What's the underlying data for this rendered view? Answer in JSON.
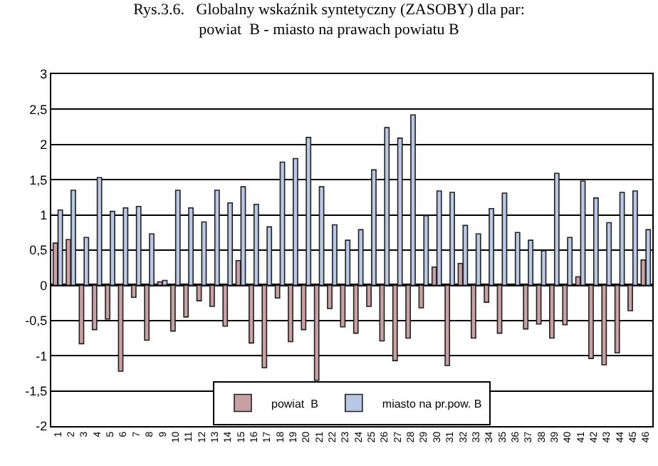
{
  "chart_data": {
    "type": "bar",
    "title": "Rys.3.6.   Globalny wskaźnik syntetyczny (ZASOBY) dla par:\npowiat  B - miasto na prawach powiatu B",
    "categories": [
      "1",
      "2",
      "3",
      "4",
      "5",
      "6",
      "7",
      "8",
      "9",
      "10",
      "11",
      "12",
      "13",
      "14",
      "15",
      "16",
      "17",
      "18",
      "19",
      "20",
      "21",
      "22",
      "23",
      "24",
      "25",
      "26",
      "27",
      "28",
      "29",
      "30",
      "31",
      "32",
      "33",
      "34",
      "35",
      "36",
      "37",
      "38",
      "39",
      "40",
      "41",
      "42",
      "43",
      "44",
      "45",
      "46"
    ],
    "series": [
      {
        "name": "powiat  B",
        "color": "#c8a0a4",
        "values": [
          0.6,
          0.65,
          -0.83,
          -0.63,
          -0.48,
          -1.22,
          -0.17,
          -0.78,
          0.05,
          -0.65,
          -0.45,
          -0.22,
          -0.3,
          -0.58,
          0.35,
          -0.82,
          -1.17,
          -0.18,
          -0.8,
          -0.63,
          -1.35,
          -0.33,
          -0.59,
          -0.68,
          -0.3,
          -0.79,
          -1.07,
          -0.75,
          -0.32,
          0.26,
          -1.14,
          0.31,
          -0.75,
          -0.24,
          -0.68,
          null,
          -0.62,
          -0.55,
          -0.75,
          -0.56,
          0.12,
          -1.04,
          -1.13,
          -0.96,
          -0.36,
          0.36
        ]
      },
      {
        "name": "miasto na pr.pow. B",
        "color": "#b8c8e4",
        "values": [
          1.07,
          1.35,
          0.68,
          1.53,
          1.05,
          1.1,
          1.12,
          0.73,
          0.07,
          1.35,
          1.1,
          0.9,
          1.35,
          1.17,
          1.4,
          1.15,
          0.83,
          1.75,
          1.8,
          2.1,
          1.4,
          0.86,
          0.64,
          0.79,
          1.64,
          2.24,
          2.09,
          2.42,
          0.99,
          1.34,
          1.32,
          0.85,
          0.73,
          1.09,
          1.31,
          0.75,
          0.64,
          0.49,
          1.59,
          0.68,
          1.48,
          1.24,
          0.89,
          1.32,
          1.34,
          0.79
        ]
      }
    ],
    "ylim": [
      -2,
      3
    ],
    "yticks": [
      {
        "value": -2,
        "label": "-2"
      },
      {
        "value": -1.5,
        "label": "-1,5"
      },
      {
        "value": -1,
        "label": "-1"
      },
      {
        "value": -0.5,
        "label": "-0,5"
      },
      {
        "value": 0,
        "label": "0"
      },
      {
        "value": 0.5,
        "label": "0,5"
      },
      {
        "value": 1,
        "label": "1"
      },
      {
        "value": 1.5,
        "label": "1,5"
      },
      {
        "value": 2,
        "label": "2"
      },
      {
        "value": 2.5,
        "label": "2,5"
      },
      {
        "value": 3,
        "label": "3"
      }
    ],
    "grid": "y",
    "legend": "bottom"
  }
}
